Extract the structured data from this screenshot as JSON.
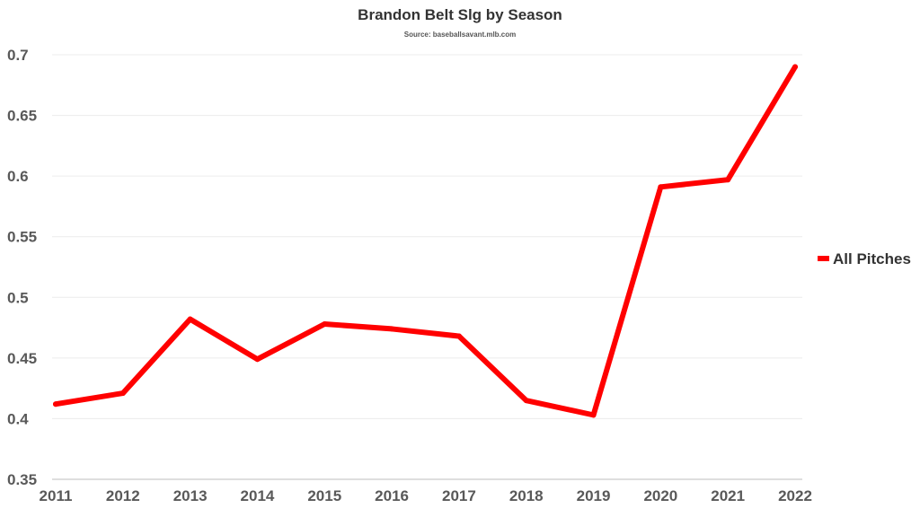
{
  "chart_data": {
    "type": "line",
    "title": "Brandon Belt Slg by Season",
    "subtitle": "Source: baseballsavant.mlb.com",
    "xlabel": "",
    "ylabel": "",
    "categories": [
      "2011",
      "2012",
      "2013",
      "2014",
      "2015",
      "2016",
      "2017",
      "2018",
      "2019",
      "2020",
      "2021",
      "2022"
    ],
    "series": [
      {
        "name": "All Pitches",
        "color": "#ff0000",
        "values": [
          0.412,
          0.421,
          0.482,
          0.449,
          0.478,
          0.474,
          0.468,
          0.415,
          0.403,
          0.591,
          0.597,
          0.69
        ]
      }
    ],
    "ylim": [
      0.35,
      0.7
    ],
    "yticks": [
      "0.35",
      "0.4",
      "0.45",
      "0.5",
      "0.55",
      "0.6",
      "0.65",
      "0.7"
    ],
    "grid": true,
    "legend_position": "right"
  }
}
